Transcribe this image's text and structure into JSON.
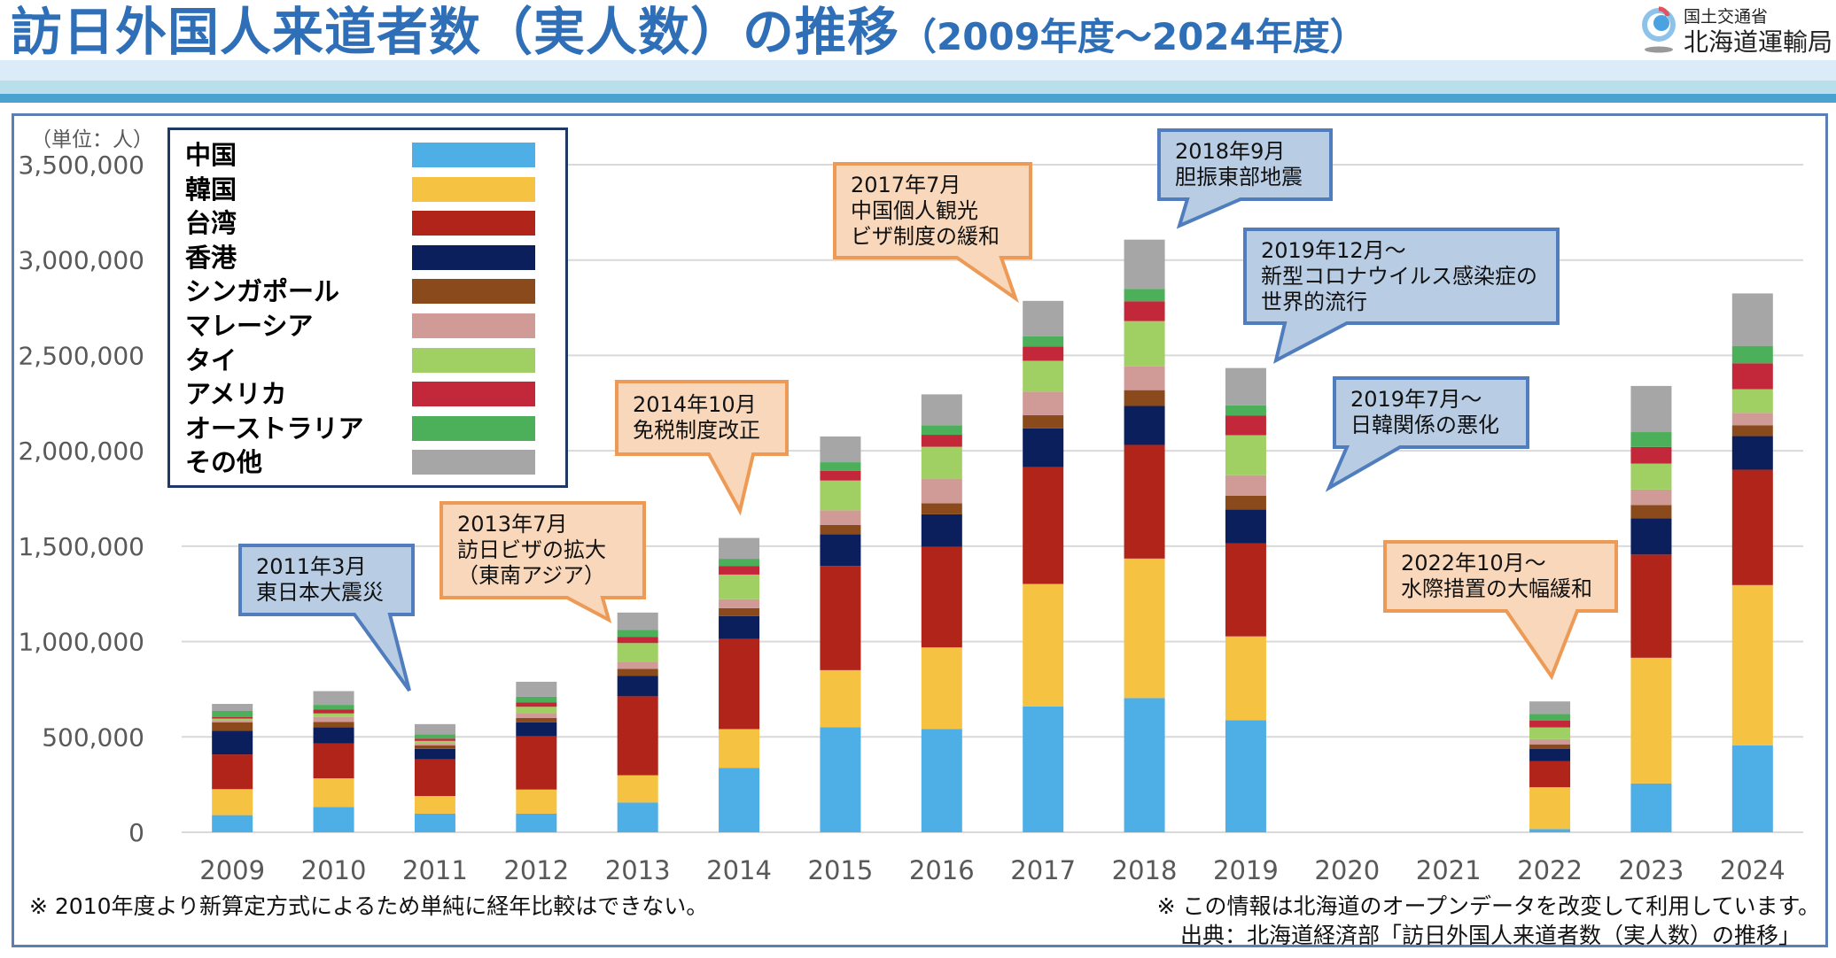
{
  "header": {
    "title": "訪日外国人来道者数（実人数）の推移",
    "subtitle": "（2009年度～2024年度）",
    "logo_line1": "国土交通省",
    "logo_line2": "北海道運輸局"
  },
  "notes": {
    "left": "※ 2010年度より新算定方式によるため単純に経年比較はできない。",
    "right1": "※ この情報は北海道のオープンデータを改変して利用しています。",
    "right2": "出典：北海道経済部「訪日外国人来道者数（実人数）の推移」"
  },
  "chart_data": {
    "type": "bar",
    "stacked": true,
    "unit_label": "（単位：人）",
    "ylim": [
      0,
      3500000
    ],
    "yticks": [
      "0",
      "500,000",
      "1,000,000",
      "1,500,000",
      "2,000,000",
      "2,500,000",
      "3,000,000",
      "3,500,000"
    ],
    "ytick_values": [
      0,
      500000,
      1000000,
      1500000,
      2000000,
      2500000,
      3000000,
      3500000
    ],
    "grid": true,
    "legend_position": "top-left",
    "categories": [
      "2009",
      "2010",
      "2011",
      "2012",
      "2013",
      "2014",
      "2015",
      "2016",
      "2017",
      "2018",
      "2019",
      "2020",
      "2021",
      "2022",
      "2023",
      "2024"
    ],
    "series": [
      {
        "name": "中国",
        "color": "#4eaee6",
        "values": [
          90000,
          132000,
          98000,
          98000,
          156000,
          338000,
          550000,
          542000,
          660000,
          704000,
          587000,
          0,
          0,
          17000,
          256000,
          455000
        ]
      },
      {
        "name": "韓国",
        "color": "#f5c242",
        "values": [
          136000,
          151000,
          92000,
          126000,
          143000,
          203000,
          300000,
          427000,
          642000,
          731000,
          440000,
          0,
          0,
          219000,
          659000,
          841000
        ]
      },
      {
        "name": "台湾",
        "color": "#b0241a",
        "values": [
          182000,
          182000,
          192000,
          280000,
          414000,
          472000,
          546000,
          527000,
          612000,
          596000,
          487000,
          0,
          0,
          136000,
          541000,
          605000
        ]
      },
      {
        "name": "香港",
        "color": "#0b1f5c",
        "values": [
          125000,
          86000,
          55000,
          72000,
          108000,
          120000,
          167000,
          171000,
          204000,
          204000,
          179000,
          0,
          0,
          66000,
          190000,
          176000
        ]
      },
      {
        "name": "シンガポール",
        "color": "#8b4a1c",
        "values": [
          44000,
          28000,
          19000,
          23000,
          36000,
          42000,
          48000,
          58000,
          69000,
          83000,
          71000,
          0,
          0,
          23000,
          70000,
          56000
        ]
      },
      {
        "name": "マレーシア",
        "color": "#d09a96",
        "values": [
          11000,
          25000,
          12000,
          23000,
          37000,
          47000,
          77000,
          129000,
          123000,
          125000,
          108000,
          0,
          0,
          27000,
          81000,
          66000
        ]
      },
      {
        "name": "タイ",
        "color": "#a0d063",
        "values": [
          8000,
          19000,
          11000,
          36000,
          98000,
          129000,
          156000,
          167000,
          162000,
          237000,
          210000,
          0,
          0,
          62000,
          136000,
          124000
        ]
      },
      {
        "name": "アメリカ",
        "color": "#c3283a",
        "values": [
          9000,
          20000,
          12000,
          22000,
          33000,
          44000,
          50000,
          63000,
          75000,
          104000,
          102000,
          0,
          0,
          35000,
          87000,
          136000
        ]
      },
      {
        "name": "オーストラリア",
        "color": "#4caf5a",
        "values": [
          31000,
          25000,
          23000,
          31000,
          37000,
          39000,
          46000,
          50000,
          54000,
          65000,
          54000,
          0,
          0,
          35000,
          78000,
          91000
        ]
      },
      {
        "name": "その他",
        "color": "#a6a6a6",
        "values": [
          37000,
          72000,
          53000,
          78000,
          90000,
          109000,
          135000,
          162000,
          185000,
          258000,
          196000,
          0,
          0,
          66000,
          242000,
          275000
        ]
      }
    ],
    "annotations": [
      {
        "lines": [
          "2011年3月",
          "東日本大震災"
        ],
        "style": "blue",
        "target": "2011"
      },
      {
        "lines": [
          "2013年7月",
          "訪日ビザの拡大",
          "（東南アジア）"
        ],
        "style": "orange",
        "target": "2013"
      },
      {
        "lines": [
          "2014年10月",
          "免税制度改正"
        ],
        "style": "orange",
        "target": "2014"
      },
      {
        "lines": [
          "2017年7月",
          "中国個人観光",
          "ビザ制度の緩和"
        ],
        "style": "orange",
        "target": "2017"
      },
      {
        "lines": [
          "2018年9月",
          "胆振東部地震"
        ],
        "style": "blue",
        "target": "2018"
      },
      {
        "lines": [
          "2019年12月～",
          "新型コロナウイルス感染症の",
          "世界的流行"
        ],
        "style": "blue",
        "target": "2019"
      },
      {
        "lines": [
          "2019年7月～",
          "日韓関係の悪化"
        ],
        "style": "blue",
        "target": "2019"
      },
      {
        "lines": [
          "2022年10月～",
          "水際措置の大幅緩和"
        ],
        "style": "orange",
        "target": "2022"
      }
    ],
    "annotation_colors": {
      "blue_fill": "#b8cce4",
      "blue_border": "#4f7dbd",
      "orange_fill": "#f8d7ba",
      "orange_border": "#ec9a56"
    }
  }
}
